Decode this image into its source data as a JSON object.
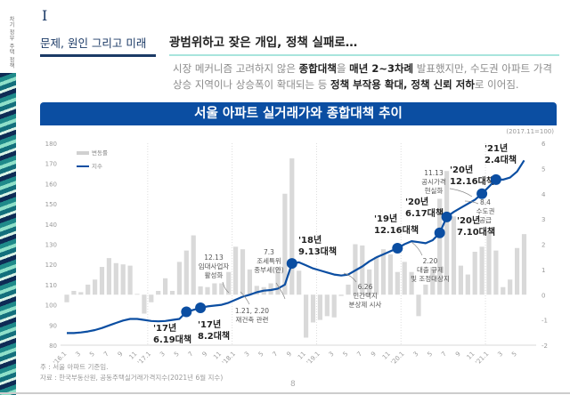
{
  "side_label": "차기 정부 주택 정책",
  "section": {
    "numeral": "I",
    "title": "문제, 원인 그리고 미래"
  },
  "headline": "광범위하고 잦은 개입, 정책 실패로…",
  "lead": {
    "p1": "시장 메커니즘 고려하지 않은 ",
    "b1": "종합대책",
    "p2": "을 ",
    "b2": "매년 2~3차례",
    "p3": " 발표했지만, 수도권 아파트 가격 상승 지역이나 상승폭이 확대되는 등 ",
    "b3": "정책 부작용 확대, 정책 신뢰 저하",
    "p4": "로 이어짐."
  },
  "colors": {
    "navy": "#1b3a66",
    "banner": "#0b4ea2",
    "line": "#0b4ea2",
    "bar": "#d9d9d9",
    "teal": "#a9e5dd"
  },
  "chart_data": {
    "type": "bar+line",
    "title": "서울 아파트 실거래가와 종합대책 추이",
    "unit_note": "(2017.11=100)",
    "legend": {
      "bar": "변동률",
      "line": "지수",
      "placement": "top-left"
    },
    "y_left": {
      "range": [
        80,
        180
      ],
      "ticks": [
        "80",
        "90",
        "100",
        "110",
        "120",
        "130",
        "140",
        "150",
        "160",
        "170",
        "180"
      ]
    },
    "y_right": {
      "range": [
        -2,
        6
      ],
      "ticks": [
        "-2",
        "-1",
        "0",
        "1",
        "2",
        "3",
        "4",
        "5",
        "6"
      ]
    },
    "x_tick_labels": [
      "'16.1",
      "3",
      "5",
      "7",
      "9",
      "11",
      "'17.1",
      "3",
      "5",
      "7",
      "9",
      "11",
      "'18.1",
      "3",
      "5",
      "7",
      "9",
      "11",
      "'19.1",
      "3",
      "5",
      "7",
      "9",
      "11",
      "'20.1",
      "3",
      "5",
      "7",
      "9",
      "11",
      "'21.1",
      "3",
      "5"
    ],
    "months": "2016.1 - 2021.6",
    "series": [
      {
        "name": "변동률",
        "axis": "right",
        "values": [
          -0.3,
          0.15,
          0.1,
          0.4,
          0.6,
          1.1,
          1.45,
          1.25,
          1.2,
          1.15,
          0.03,
          -0.75,
          -0.3,
          0.15,
          0.65,
          0.15,
          1.3,
          1.75,
          2.35,
          0.33,
          0.3,
          0.45,
          0.45,
          0.9,
          1.9,
          1.8,
          1.0,
          0.35,
          0.3,
          0.45,
          1.1,
          4.0,
          5.4,
          0.95,
          -1.7,
          -1.1,
          -1.0,
          -0.85,
          -0.9,
          -0.05,
          0.4,
          2.0,
          1.95,
          1.0,
          1.5,
          1.8,
          1.6,
          0.9,
          1.3,
          0.9,
          -0.85,
          0.4,
          1.1,
          3.8,
          4.9,
          3.1,
          1.15,
          0.8,
          1.7,
          1.9,
          2.5,
          1.75,
          0.3,
          0.6,
          1.85,
          2.4
        ]
      },
      {
        "name": "지수",
        "axis": "left",
        "values": [
          86,
          86,
          86.3,
          86.8,
          87.5,
          88.5,
          89.8,
          91,
          92.2,
          93,
          93,
          92.5,
          92,
          91.8,
          92,
          92.5,
          93,
          96.5,
          97.5,
          98.5,
          99.2,
          99.6,
          100,
          101,
          102.5,
          104,
          105,
          106.2,
          107,
          107.3,
          108,
          110,
          120.5,
          121,
          119.5,
          118,
          117,
          116,
          115,
          114.5,
          115,
          117,
          119,
          121.5,
          123.5,
          125,
          126.5,
          128,
          130,
          131.5,
          131,
          130.5,
          132,
          135.6,
          143.5,
          146,
          148,
          150,
          152,
          155,
          158.5,
          162,
          162,
          163,
          166,
          171.5
        ]
      }
    ],
    "policies": [
      {
        "month": "2017.6",
        "year": "'17년",
        "name": "6.19대책"
      },
      {
        "month": "2017.8",
        "year": "'17년",
        "name": "8.2대책"
      },
      {
        "month": "2018.9",
        "year": "'18년",
        "name": "9.13대책"
      },
      {
        "month": "2019.12",
        "year": "'19년",
        "name": "12.16대책"
      },
      {
        "month": "2020.6",
        "year": "'20년",
        "name": "6.17대책"
      },
      {
        "month": "2020.7",
        "year": "'20년",
        "name": "7.10대책"
      },
      {
        "month": "2020.12",
        "year": "'20년",
        "name": "12.16대책"
      },
      {
        "month": "2021.2",
        "year": "'21년",
        "name": "2.4대책"
      }
    ],
    "annotations": [
      [
        "12.13",
        "임대사업자",
        "활성화"
      ],
      [
        "7.3",
        "조세특위",
        "종부세(안)"
      ],
      [
        "1.21, 2.20",
        "재건축 관련"
      ],
      [
        "6.26",
        "민간택지",
        "분상제 시사"
      ],
      [
        "2.20",
        "대출 규제",
        "및 조정대상지"
      ],
      [
        "11.13",
        "공시가격",
        "현실화"
      ],
      [
        "8.4",
        "수도권",
        "공급"
      ]
    ]
  },
  "footnotes": [
    "주 : 서울 아파트 기준임.",
    "자료 : 한국부동산원, 공동주택실거래가격지수(2021년 6월 지수)"
  ],
  "page_number": "8"
}
